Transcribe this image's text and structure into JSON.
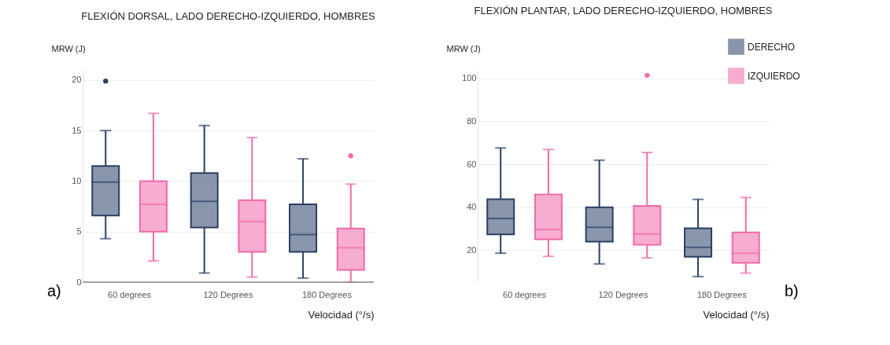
{
  "chart_data": [
    {
      "type": "box",
      "title": "FLEXIÓN DORSAL, LADO DERECHO-IZQUIERDO, HOMBRES",
      "xlabel": "Velocidad (°/s)",
      "ylabel": "MRW (J)",
      "categories": [
        "60 degrees",
        "120 Degrees",
        "180 Degrees"
      ],
      "ylim": [
        0,
        21
      ],
      "yticks": [
        0,
        5,
        10,
        15,
        20
      ],
      "grid": "y",
      "legend": false,
      "annotations": [
        "a)"
      ],
      "series": [
        {
          "color": "#2a3f66",
          "boxes": [
            {
              "low": 4.3,
              "q1": 6.6,
              "median": 9.9,
              "q3": 11.5,
              "high": 15,
              "outliers": [
                19.9
              ]
            },
            {
              "low": 0.9,
              "q1": 5.4,
              "median": 8.0,
              "q3": 10.8,
              "high": 15.5
            },
            {
              "low": 0.4,
              "q1": 3.0,
              "median": 4.7,
              "q3": 7.7,
              "high": 12.2
            }
          ]
        },
        {
          "color": "#f06aa9",
          "boxes": [
            {
              "low": 2.1,
              "q1": 5.0,
              "median": 7.7,
              "q3": 10.0,
              "high": 16.7
            },
            {
              "low": 0.5,
              "q1": 3.0,
              "median": 6.0,
              "q3": 8.1,
              "high": 14.3
            },
            {
              "low": 0,
              "q1": 1.2,
              "median": 3.4,
              "q3": 5.3,
              "high": 9.7,
              "outliers": [
                12.5
              ]
            }
          ]
        }
      ]
    },
    {
      "type": "box",
      "title": "FLEXIÓN PLANTAR, LADO DERECHO-IZQUIERDO, HOMBRES",
      "xlabel": "Velocidad (°/s)",
      "ylabel": "MRW (J)",
      "categories": [
        "60 degrees",
        "120 Degrees",
        "180 Degrees"
      ],
      "ylim": [
        5,
        104
      ],
      "yticks": [
        20,
        40,
        60,
        80,
        100
      ],
      "grid": "y",
      "legend": "top right",
      "annotations": [
        "b)"
      ],
      "series": [
        {
          "name": "DERECHO",
          "color": "#2a3f66",
          "boxes": [
            {
              "low": 18.5,
              "q1": 27.3,
              "median": 34.7,
              "q3": 43.7,
              "high": 67.6
            },
            {
              "low": 13.5,
              "q1": 23.9,
              "median": 30.6,
              "q3": 39.9,
              "high": 61.9
            },
            {
              "low": 7.6,
              "q1": 16.8,
              "median": 21.2,
              "q3": 30.1,
              "high": 43.6
            }
          ]
        },
        {
          "name": "IZQUIERDO",
          "color": "#f06aa9",
          "boxes": [
            {
              "low": 17,
              "q1": 25,
              "median": 29.6,
              "q3": 45.9,
              "high": 66.9
            },
            {
              "low": 16.3,
              "q1": 22.4,
              "median": 27.5,
              "q3": 40.6,
              "high": 65.5,
              "outliers": [
                101.5
              ]
            },
            {
              "low": 9.2,
              "q1": 14,
              "median": 18.5,
              "q3": 28.2,
              "high": 44.5
            }
          ]
        }
      ]
    }
  ]
}
